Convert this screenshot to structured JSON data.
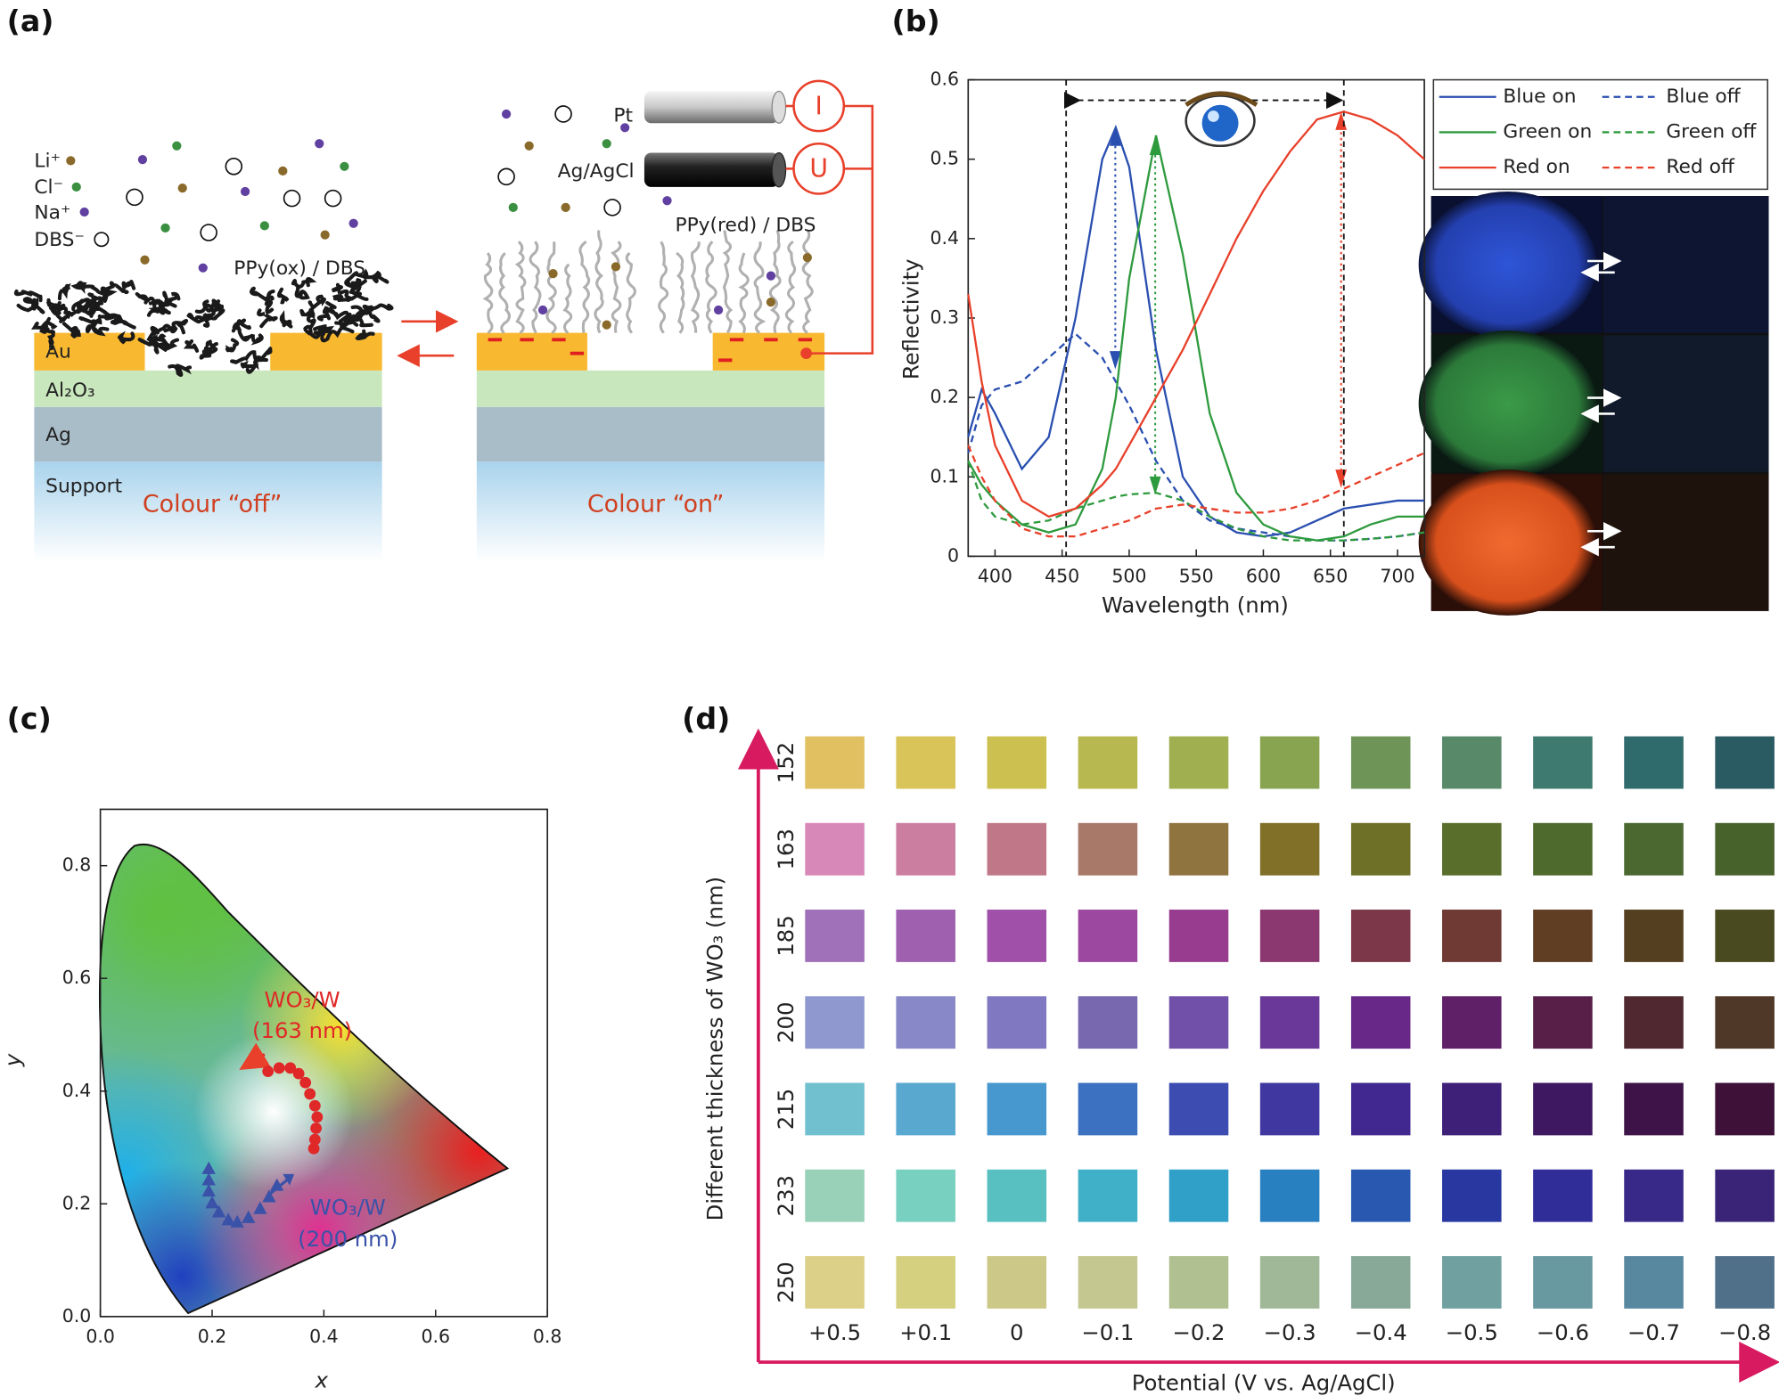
{
  "panel_labels": [
    "(a)",
    "(b)",
    "(c)",
    "(d)"
  ],
  "diagram": {
    "ions": [
      "Li⁺",
      "Cl⁻",
      "Na⁺",
      "DBS⁻"
    ],
    "left_polymer": "PPy(ox) / DBS",
    "layers": [
      "Au",
      "Al₂O₃",
      "Ag",
      "Support"
    ],
    "left_state": "Colour “off”",
    "electrodes": [
      "Pt",
      "Ag/AgCl"
    ],
    "meters": [
      "I",
      "U"
    ],
    "right_polymer": "PPy(red) / DBS",
    "right_state": "Colour “on”"
  },
  "chart_data": [
    {
      "type": "line",
      "xlabel": "Wavelength (nm)",
      "ylabel": "Reflectivity",
      "x": [
        380,
        390,
        400,
        420,
        440,
        460,
        480,
        490,
        500,
        520,
        540,
        560,
        580,
        600,
        620,
        640,
        660,
        680,
        700,
        720
      ],
      "series": [
        {
          "name": "Blue on",
          "color": "#2a4fb0",
          "dashed": false,
          "values": [
            0.15,
            0.21,
            0.18,
            0.11,
            0.15,
            0.3,
            0.5,
            0.54,
            0.49,
            0.26,
            0.1,
            0.05,
            0.03,
            0.025,
            0.03,
            0.045,
            0.06,
            0.065,
            0.07,
            0.07
          ]
        },
        {
          "name": "Blue off",
          "color": "#2a4fb0",
          "dashed": true,
          "values": [
            0.13,
            0.19,
            0.21,
            0.22,
            0.25,
            0.28,
            0.25,
            0.22,
            0.19,
            0.12,
            0.07,
            0.045,
            0.035,
            0.03,
            0.025,
            0.02,
            0.02,
            0.022,
            0.025,
            0.03
          ]
        },
        {
          "name": "Green on",
          "color": "#2e9a3e",
          "dashed": false,
          "values": [
            0.12,
            0.09,
            0.07,
            0.04,
            0.03,
            0.04,
            0.11,
            0.2,
            0.35,
            0.53,
            0.38,
            0.18,
            0.08,
            0.04,
            0.025,
            0.02,
            0.025,
            0.04,
            0.05,
            0.05
          ]
        },
        {
          "name": "Green off",
          "color": "#2e9a3e",
          "dashed": true,
          "values": [
            0.12,
            0.07,
            0.05,
            0.04,
            0.045,
            0.06,
            0.07,
            0.075,
            0.078,
            0.08,
            0.07,
            0.05,
            0.035,
            0.025,
            0.02,
            0.02,
            0.02,
            0.022,
            0.025,
            0.03
          ]
        },
        {
          "name": "Red on",
          "color": "#e8402a",
          "dashed": false,
          "values": [
            0.33,
            0.22,
            0.14,
            0.07,
            0.05,
            0.06,
            0.09,
            0.11,
            0.14,
            0.2,
            0.26,
            0.33,
            0.4,
            0.46,
            0.51,
            0.55,
            0.56,
            0.55,
            0.53,
            0.5
          ]
        },
        {
          "name": "Red off",
          "color": "#e8402a",
          "dashed": true,
          "values": [
            0.14,
            0.1,
            0.07,
            0.035,
            0.025,
            0.025,
            0.035,
            0.04,
            0.045,
            0.06,
            0.065,
            0.06,
            0.055,
            0.055,
            0.06,
            0.07,
            0.085,
            0.1,
            0.115,
            0.13
          ]
        }
      ],
      "vlines": [
        453,
        660
      ],
      "xlim": [
        380,
        720
      ],
      "xticks": [
        400,
        450,
        500,
        550,
        600,
        650,
        700
      ],
      "ylim": [
        0,
        0.6
      ],
      "yticks": [
        0,
        0.1,
        0.2,
        0.3,
        0.4,
        0.5,
        0.6
      ]
    },
    {
      "type": "scatter",
      "xlabel": "x",
      "ylabel": "y",
      "series": [
        {
          "name": "WO₃/W",
          "note": "(163 nm)",
          "color": "#e02828",
          "marker": "circle",
          "x": [
            0.3,
            0.32,
            0.34,
            0.355,
            0.367,
            0.375,
            0.384,
            0.388,
            0.386,
            0.384,
            0.382
          ],
          "values": [
            0.435,
            0.441,
            0.441,
            0.431,
            0.415,
            0.395,
            0.374,
            0.354,
            0.334,
            0.314,
            0.298
          ]
        },
        {
          "name": "WO₃/W",
          "note": "(200 nm)",
          "color": "#3a52a8",
          "marker": "triangle",
          "x": [
            0.194,
            0.194,
            0.194,
            0.2,
            0.212,
            0.229,
            0.245,
            0.265,
            0.286,
            0.302,
            0.316
          ],
          "values": [
            0.263,
            0.243,
            0.223,
            0.202,
            0.186,
            0.172,
            0.168,
            0.176,
            0.192,
            0.213,
            0.233
          ]
        }
      ],
      "xlim": [
        0,
        0.8
      ],
      "xticks": [
        {
          "value": 0,
          "label": "0.0"
        },
        0.2,
        0.4,
        0.6,
        0.8
      ],
      "ylim": [
        0,
        0.9
      ],
      "yticks": [
        {
          "value": 0,
          "label": "0.0"
        },
        0.2,
        0.4,
        0.6,
        0.8
      ]
    }
  ],
  "grid": {
    "ylabel": "Different thickness of WO₃ (nm)",
    "xlabel": "Potential (V vs. Ag/AgCl)",
    "rows": [
      "152",
      "163",
      "185",
      "200",
      "215",
      "233",
      "250"
    ],
    "columns": [
      "+0.5",
      "+0.1",
      "0",
      "−0.1",
      "−0.2",
      "−0.3",
      "−0.4",
      "−0.5",
      "−0.6",
      "−0.7",
      "−0.8"
    ],
    "colors": [
      [
        "#e0c060",
        "#d8c458",
        "#ccc050",
        "#b8b850",
        "#a0b050",
        "#88a450",
        "#6e9458",
        "#588a6a",
        "#3f7a70",
        "#2f6a6c",
        "#2a5a62"
      ],
      [
        "#d888b8",
        "#cc7ea0",
        "#c07888",
        "#a87868",
        "#907440",
        "#807028",
        "#6e7028",
        "#5a6e2c",
        "#4e6a2c",
        "#4a6830",
        "#48622c"
      ],
      [
        "#a070b8",
        "#a060b0",
        "#a050a8",
        "#9c48a0",
        "#983c90",
        "#8c3870",
        "#7c3848",
        "#703a34",
        "#603e24",
        "#544020",
        "#4a4a20"
      ],
      [
        "#9098d0",
        "#8888c8",
        "#8078c0",
        "#7868b0",
        "#7050a8",
        "#6a3898",
        "#682888",
        "#602068",
        "#582048",
        "#502830",
        "#503828"
      ],
      [
        "#70c0d0",
        "#58a8d0",
        "#4898d0",
        "#3c70c0",
        "#3c4cb0",
        "#4038a0",
        "#402890",
        "#3e2078",
        "#3e1860",
        "#3e1448",
        "#3e1238"
      ],
      [
        "#98d0b8",
        "#78d0c0",
        "#58c0c0",
        "#40b0c8",
        "#30a0c8",
        "#2880c0",
        "#2858b0",
        "#2838a0",
        "#302c98",
        "#382888",
        "#3a2478"
      ],
      [
        "#dcd088",
        "#d4d080",
        "#ccc888",
        "#c4c890",
        "#b0c090",
        "#a0b898",
        "#88a898",
        "#70a0a0",
        "#6898a0",
        "#5888a0",
        "#50708a"
      ]
    ]
  }
}
